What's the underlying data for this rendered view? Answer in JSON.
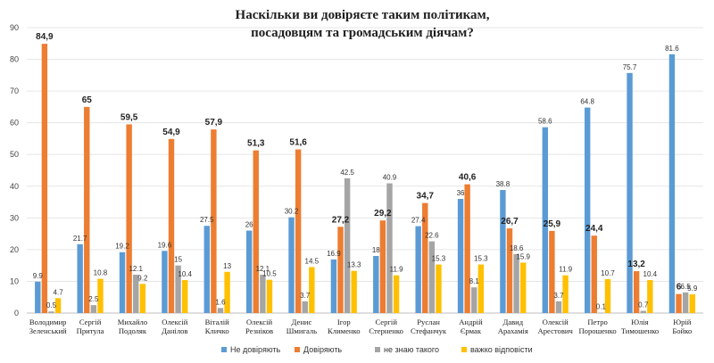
{
  "chart_data": {
    "type": "bar",
    "title": [
      "Наскільки ви довіряєте таким політикам,",
      "посадовцям та громадським діячам?"
    ],
    "xlabel": "",
    "ylabel": "",
    "ylim": [
      0,
      90
    ],
    "yticks": [
      0,
      10,
      20,
      30,
      40,
      50,
      60,
      70,
      80,
      90
    ],
    "grid": true,
    "legend_position": "bottom",
    "categories": [
      [
        "Володимир",
        "Зеленський"
      ],
      [
        "Сергій",
        "Притула"
      ],
      [
        "Михайло",
        "Подоляк"
      ],
      [
        "Олексій",
        "Данілов"
      ],
      [
        "Віталій",
        "Кличко"
      ],
      [
        "Олексій",
        "Резніков"
      ],
      [
        "Денис",
        "Шмигаль"
      ],
      [
        "Ігор",
        "Клименко"
      ],
      [
        "Сергій",
        "Стерненко"
      ],
      [
        "Руслан",
        "Стефанчук"
      ],
      [
        "Андрій",
        "Єрмак"
      ],
      [
        "Давид",
        "Арахамія"
      ],
      [
        "Олексій",
        "Арестович"
      ],
      [
        "Петро",
        "Порошенко"
      ],
      [
        "Юлія",
        "Тимошенко"
      ],
      [
        "Юрій",
        "Бойко"
      ]
    ],
    "series": [
      {
        "name": "Не довіряють",
        "color": "#5b9bd5",
        "values": [
          9.9,
          21.7,
          19.2,
          19.6,
          27.5,
          26,
          30.2,
          16.9,
          18,
          27.4,
          36,
          38.8,
          58.6,
          64.8,
          75.7,
          81.6
        ],
        "labels": [
          "9.9",
          "21.7",
          "19.2",
          "19.6",
          "27.5",
          "26",
          "30.2",
          "16.9",
          "18",
          "27.4",
          "36",
          "38.8",
          "58.6",
          "64.8",
          "75.7",
          "81.6"
        ]
      },
      {
        "name": "Довіряють",
        "color": "#ed7d31",
        "values": [
          84.9,
          65,
          59.5,
          54.9,
          57.9,
          51.3,
          51.6,
          27.2,
          29.2,
          34.7,
          40.6,
          26.7,
          25.9,
          24.4,
          13.2,
          6
        ],
        "labels": [
          "84,9",
          "65",
          "59,5",
          "54,9",
          "57,9",
          "51,3",
          "51,6",
          "27,2",
          "29,2",
          "34,7",
          "40,6",
          "26,7",
          "25,9",
          "24,4",
          "13,2",
          "6"
        ]
      },
      {
        "name": "не знаю такого",
        "color": "#a5a5a5",
        "values": [
          0.5,
          2.5,
          12.1,
          15,
          1.6,
          12.1,
          3.7,
          42.5,
          40.9,
          22.6,
          8.1,
          18.6,
          3.7,
          0.1,
          0.7,
          6.5
        ],
        "labels": [
          "0.5",
          "2.5",
          "12.1",
          "15",
          "1.6",
          "12.1",
          "3.7",
          "42.5",
          "40.9",
          "22.6",
          "8.1",
          "18.6",
          "3.7",
          "0.1",
          "0.7",
          "6.5"
        ]
      },
      {
        "name": "важко відповісти",
        "color": "#ffc000",
        "values": [
          4.7,
          10.8,
          9.2,
          10.4,
          13,
          10.5,
          14.5,
          13.3,
          11.9,
          15.3,
          15.3,
          15.9,
          11.9,
          10.7,
          10.4,
          5.9
        ],
        "labels": [
          "4.7",
          "10.8",
          "9.2",
          "10.4",
          "13",
          "10.5",
          "14.5",
          "13.3",
          "11.9",
          "15.3",
          "15.3",
          "15.9",
          "11.9",
          "10.7",
          "10.4",
          "5.9"
        ]
      }
    ]
  }
}
